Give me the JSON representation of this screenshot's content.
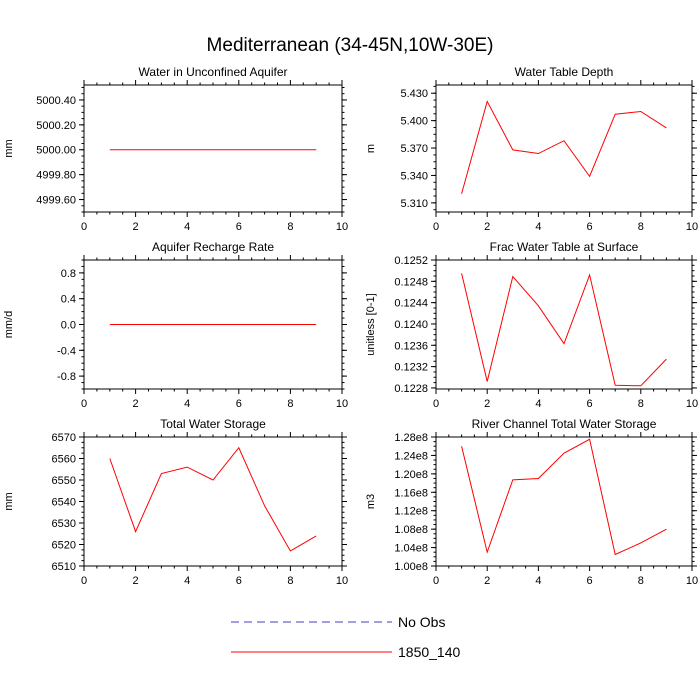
{
  "title": "Mediterranean (34-45N,10W-30E)",
  "legend": [
    {
      "label": "No Obs",
      "color": "#4040c0",
      "dash": true
    },
    {
      "label": "1850_140",
      "color": "#ff0000",
      "dash": false
    }
  ],
  "chart_data": [
    {
      "type": "line",
      "title": "Water in Unconfined Aquifer",
      "xlabel": "",
      "ylabel": "mm",
      "xlim": [
        0,
        10
      ],
      "ylim": [
        4999.5,
        5000.52
      ],
      "xticks": [
        "0",
        "2",
        "4",
        "6",
        "8",
        "10"
      ],
      "yticks": [
        "4999.60",
        "4999.80",
        "5000.00",
        "5000.20",
        "5000.40"
      ],
      "ytick_values": [
        4999.6,
        4999.8,
        5000.0,
        5000.2,
        5000.4
      ],
      "series": [
        {
          "name": "1850_140",
          "color": "#ff0000",
          "x": [
            1,
            2,
            3,
            4,
            5,
            6,
            7,
            8,
            9
          ],
          "values": [
            5000.0,
            5000.0,
            5000.0,
            5000.0,
            5000.0,
            5000.0,
            5000.0,
            5000.0,
            5000.0
          ]
        }
      ]
    },
    {
      "type": "line",
      "title": "Water Table Depth",
      "xlabel": "",
      "ylabel": "m",
      "xlim": [
        0,
        10
      ],
      "ylim": [
        5.3,
        5.439
      ],
      "xticks": [
        "0",
        "2",
        "4",
        "6",
        "8",
        "10"
      ],
      "yticks": [
        "5.310",
        "5.340",
        "5.370",
        "5.400",
        "5.430"
      ],
      "ytick_values": [
        5.31,
        5.34,
        5.37,
        5.4,
        5.43
      ],
      "series": [
        {
          "name": "1850_140",
          "color": "#ff0000",
          "x": [
            1,
            2,
            3,
            4,
            5,
            6,
            7,
            8,
            9
          ],
          "values": [
            5.32,
            5.421,
            5.368,
            5.364,
            5.378,
            5.339,
            5.407,
            5.41,
            5.392
          ]
        }
      ]
    },
    {
      "type": "line",
      "title": "Aquifer Recharge Rate",
      "xlabel": "",
      "ylabel": "mm/d",
      "xlim": [
        0,
        10
      ],
      "ylim": [
        -1.0,
        1.0
      ],
      "xticks": [
        "0",
        "2",
        "4",
        "6",
        "8",
        "10"
      ],
      "yticks": [
        "-0.8",
        "-0.4",
        "0.0",
        "0.4",
        "0.8"
      ],
      "ytick_values": [
        -0.8,
        -0.4,
        0.0,
        0.4,
        0.8
      ],
      "series": [
        {
          "name": "1850_140",
          "color": "#ff0000",
          "x": [
            1,
            2,
            3,
            4,
            5,
            6,
            7,
            8,
            9
          ],
          "values": [
            0,
            0,
            0,
            0,
            0,
            0,
            0,
            0,
            0
          ]
        }
      ]
    },
    {
      "type": "line",
      "title": "Frac Water Table at Surface",
      "xlabel": "",
      "ylabel": "unitless [0-1]",
      "xlim": [
        0,
        10
      ],
      "ylim": [
        0.12278,
        0.1252
      ],
      "xticks": [
        "0",
        "2",
        "4",
        "6",
        "8",
        "10"
      ],
      "yticks": [
        "0.1228",
        "0.1232",
        "0.1236",
        "0.1240",
        "0.1244",
        "0.1248",
        "0.1252"
      ],
      "ytick_values": [
        0.1228,
        0.1232,
        0.1236,
        0.124,
        0.1244,
        0.1248,
        0.1252
      ],
      "series": [
        {
          "name": "1850_140",
          "color": "#ff0000",
          "x": [
            1,
            2,
            3,
            4,
            5,
            6,
            7,
            8,
            9
          ],
          "values": [
            0.12495,
            0.12292,
            0.12489,
            0.12434,
            0.12363,
            0.12492,
            0.12285,
            0.12284,
            0.12334
          ]
        }
      ]
    },
    {
      "type": "line",
      "title": "Total Water Storage",
      "xlabel": "",
      "ylabel": "mm",
      "xlim": [
        0,
        10
      ],
      "ylim": [
        6510,
        6570
      ],
      "xticks": [
        "0",
        "2",
        "4",
        "6",
        "8",
        "10"
      ],
      "yticks": [
        "6510",
        "6520",
        "6530",
        "6540",
        "6550",
        "6560",
        "6570"
      ],
      "ytick_values": [
        6510,
        6520,
        6530,
        6540,
        6550,
        6560,
        6570
      ],
      "series": [
        {
          "name": "1850_140",
          "color": "#ff0000",
          "x": [
            1,
            2,
            3,
            4,
            5,
            6,
            7,
            8,
            9
          ],
          "values": [
            6560,
            6526,
            6553,
            6556,
            6550,
            6565,
            6538,
            6517,
            6524
          ]
        }
      ]
    },
    {
      "type": "line",
      "title": "River Channel Total Water Storage",
      "xlabel": "",
      "ylabel": "m3",
      "xlim": [
        0,
        10
      ],
      "ylim": [
        100000000.0,
        128000000.0
      ],
      "xticks": [
        "0",
        "2",
        "4",
        "6",
        "8",
        "10"
      ],
      "yticks": [
        "1.00e8",
        "1.04e8",
        "1.08e8",
        "1.12e8",
        "1.16e8",
        "1.20e8",
        "1.24e8",
        "1.28e8"
      ],
      "ytick_values": [
        100000000.0,
        104000000.0,
        108000000.0,
        112000000.0,
        116000000.0,
        120000000.0,
        124000000.0,
        128000000.0
      ],
      "series": [
        {
          "name": "1850_140",
          "color": "#ff0000",
          "x": [
            1,
            2,
            3,
            4,
            5,
            6,
            7,
            8,
            9
          ],
          "values": [
            126000000.0,
            103000000.0,
            118700000.0,
            119000000.0,
            124500000.0,
            127500000.0,
            102500000.0,
            105000000.0,
            108000000.0
          ]
        }
      ]
    }
  ]
}
